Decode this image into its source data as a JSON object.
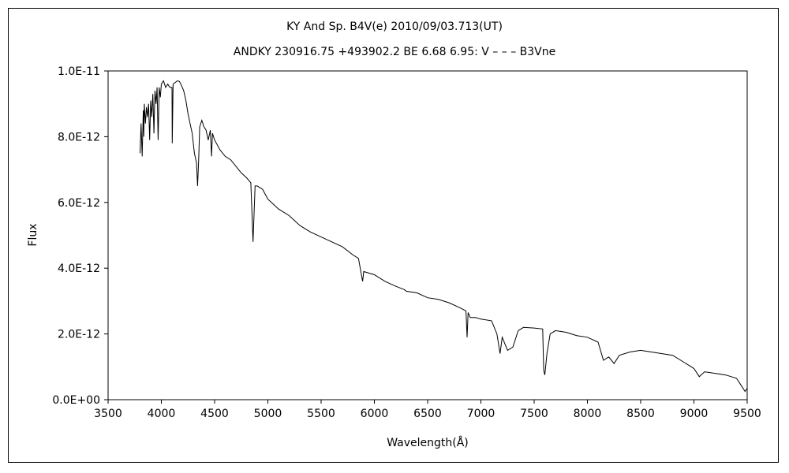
{
  "chart_data": {
    "type": "line",
    "title": "KY And    Sp. B4V(e)    2010/09/03.713(UT)",
    "subtitle": "ANDKY 230916.75 +493902.2 BE 6.68 6.95: V – – – B3Vne",
    "xlabel": "Wavelength(Å)",
    "ylabel": "Flux",
    "xlim": [
      3500,
      9500
    ],
    "ylim": [
      0,
      1e-11
    ],
    "grid": false,
    "legend": "none",
    "x_ticks": [
      3500,
      4000,
      4500,
      5000,
      5500,
      6000,
      6500,
      7000,
      7500,
      8000,
      8500,
      9000,
      9500
    ],
    "y_ticks": [
      0,
      2e-12,
      4e-12,
      6e-12,
      8e-12,
      1e-11
    ],
    "x_tick_labels": [
      "3500",
      "4000",
      "4500",
      "5000",
      "5500",
      "6000",
      "6500",
      "7000",
      "7500",
      "8000",
      "8500",
      "9000",
      "9500"
    ],
    "y_tick_labels": [
      "0.0E+00",
      "2.0E-12",
      "4.0E-12",
      "6.0E-12",
      "8.0E-12",
      "1.0E-11"
    ],
    "series": [
      {
        "color": "#000000",
        "x": [
          3800,
          3810,
          3820,
          3830,
          3835,
          3840,
          3850,
          3860,
          3870,
          3880,
          3890,
          3900,
          3910,
          3920,
          3930,
          3940,
          3950,
          3960,
          3970,
          3980,
          3990,
          4000,
          4020,
          4040,
          4060,
          4080,
          4100,
          4102,
          4110,
          4130,
          4150,
          4170,
          4190,
          4210,
          4230,
          4250,
          4270,
          4290,
          4310,
          4330,
          4340,
          4350,
          4360,
          4380,
          4400,
          4420,
          4440,
          4460,
          4471,
          4480,
          4500,
          4550,
          4600,
          4650,
          4700,
          4750,
          4800,
          4840,
          4861,
          4880,
          4900,
          4950,
          5000,
          5100,
          5200,
          5300,
          5400,
          5500,
          5600,
          5700,
          5800,
          5850,
          5890,
          5900,
          5950,
          6000,
          6100,
          6200,
          6280,
          6300,
          6400,
          6500,
          6600,
          6700,
          6800,
          6860,
          6870,
          6880,
          6900,
          6950,
          7000,
          7100,
          7150,
          7180,
          7200,
          7250,
          7300,
          7350,
          7400,
          7500,
          7580,
          7590,
          7600,
          7620,
          7650,
          7700,
          7800,
          7900,
          8000,
          8100,
          8150,
          8200,
          8250,
          8300,
          8400,
          8500,
          8600,
          8700,
          8800,
          8900,
          9000,
          9050,
          9100,
          9200,
          9300,
          9400,
          9450,
          9480,
          9500
        ],
        "values": [
          7.5e-12,
          8.4e-12,
          7.4e-12,
          8.8e-12,
          8e-12,
          9e-12,
          8.4e-12,
          8.9e-12,
          8.6e-12,
          9e-12,
          7.9e-12,
          9.1e-12,
          8.6e-12,
          9.3e-12,
          8.1e-12,
          9.4e-12,
          9e-12,
          9.5e-12,
          7.9e-12,
          9.5e-12,
          9.2e-12,
          9.6e-12,
          9.7e-12,
          9.5e-12,
          9.6e-12,
          9.5e-12,
          9.5e-12,
          7.8e-12,
          9.6e-12,
          9.65e-12,
          9.7e-12,
          9.68e-12,
          9.55e-12,
          9.4e-12,
          9.1e-12,
          8.7e-12,
          8.4e-12,
          8.1e-12,
          7.5e-12,
          7.2e-12,
          6.5e-12,
          7.3e-12,
          8.3e-12,
          8.5e-12,
          8.3e-12,
          8.2e-12,
          7.9e-12,
          8.2e-12,
          7.4e-12,
          8.1e-12,
          7.9e-12,
          7.6e-12,
          7.4e-12,
          7.3e-12,
          7.1e-12,
          6.9e-12,
          6.75e-12,
          6.6e-12,
          4.8e-12,
          6.5e-12,
          6.5e-12,
          6.4e-12,
          6.1e-12,
          5.8e-12,
          5.6e-12,
          5.3e-12,
          5.1e-12,
          4.95e-12,
          4.8e-12,
          4.65e-12,
          4.4e-12,
          4.3e-12,
          3.6e-12,
          3.9e-12,
          3.85e-12,
          3.8e-12,
          3.6e-12,
          3.45e-12,
          3.35e-12,
          3.3e-12,
          3.25e-12,
          3.1e-12,
          3.05e-12,
          2.95e-12,
          2.8e-12,
          2.7e-12,
          1.9e-12,
          2.65e-12,
          2.5e-12,
          2.5e-12,
          2.45e-12,
          2.4e-12,
          2e-12,
          1.4e-12,
          1.9e-12,
          1.5e-12,
          1.6e-12,
          2.1e-12,
          2.2e-12,
          2.18e-12,
          2.15e-12,
          9e-13,
          7.5e-13,
          1.4e-12,
          2e-12,
          2.1e-12,
          2.05e-12,
          1.95e-12,
          1.9e-12,
          1.75e-12,
          1.2e-12,
          1.3e-12,
          1.1e-12,
          1.35e-12,
          1.45e-12,
          1.5e-12,
          1.45e-12,
          1.4e-12,
          1.35e-12,
          1.15e-12,
          9.5e-13,
          7e-13,
          8.5e-13,
          8e-13,
          7.5e-13,
          6.5e-13,
          4e-13,
          2.5e-13,
          3.5e-13
        ]
      }
    ]
  }
}
